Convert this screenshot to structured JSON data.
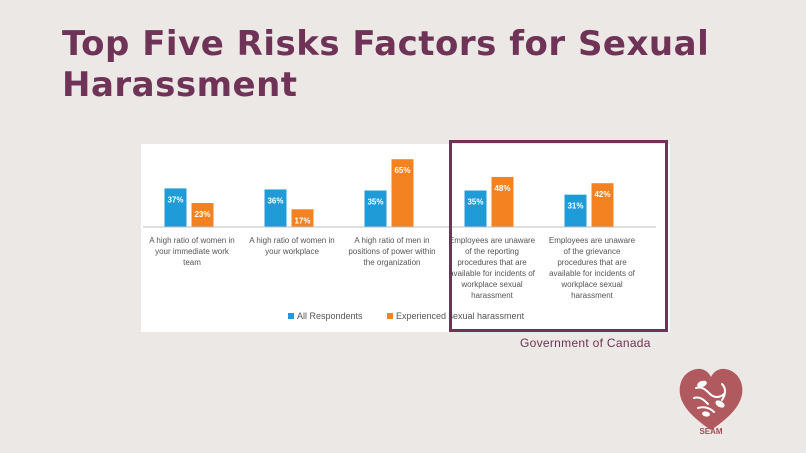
{
  "slide": {
    "title": "Top Five Risks Factors for Sexual Harassment",
    "source": "Government of Canada",
    "logo_text": "SEAM"
  },
  "colors": {
    "title": "#6e3357",
    "series_all": "#1f9bd7",
    "series_experienced": "#f58220",
    "highlight": "#6e3357",
    "logo": "#b05a5f"
  },
  "chart_data": {
    "type": "bar",
    "categories": [
      [
        "A high ratio of women in",
        "your immediate work",
        "team"
      ],
      [
        "A high ratio of women in",
        "your workplace"
      ],
      [
        "A high ratio of men in",
        "positions of power within",
        "the organization"
      ],
      [
        "Employees are unaware",
        "of the reporting",
        "procedures that are",
        "available for incidents of",
        "workplace sexual",
        "harassment"
      ],
      [
        "Employees are unaware",
        "of the grievance",
        "procedures that are",
        "available for incidents of",
        "workplace sexual",
        "harassment"
      ]
    ],
    "series": [
      {
        "name": "All Respondents",
        "values": [
          37,
          36,
          35,
          35,
          31
        ],
        "labels": [
          "37%",
          "36%",
          "35%",
          "35%",
          "31%"
        ]
      },
      {
        "name": "Experienced sexual harassment",
        "values": [
          23,
          17,
          65,
          48,
          42
        ],
        "labels": [
          "23%",
          "17%",
          "65%",
          "48%",
          "42%"
        ]
      }
    ],
    "ylim": [
      0,
      70
    ],
    "legend_position": "bottom",
    "grid": false,
    "highlighted_categories": [
      3,
      4
    ]
  }
}
